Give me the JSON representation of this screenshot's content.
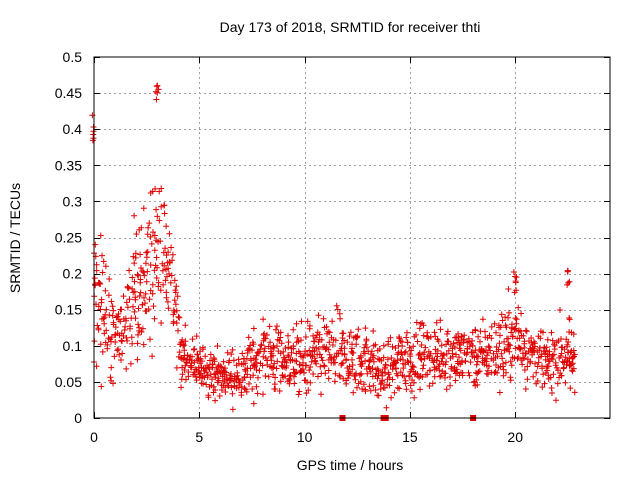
{
  "chart_data": {
    "type": "scatter",
    "title": "Day 173 of 2018, SRMTID for receiver thti",
    "xlabel": "GPS time / hours",
    "ylabel": "SRMTID / TECUs",
    "xlim": [
      0,
      24.5
    ],
    "ylim": [
      0,
      0.5
    ],
    "x_ticks": [
      0,
      5,
      10,
      15,
      20
    ],
    "x_tick_labels": [
      "0",
      "5",
      "10",
      "15",
      "20"
    ],
    "y_ticks": [
      0,
      0.05,
      0.1,
      0.15,
      0.2,
      0.25,
      0.3,
      0.35,
      0.4,
      0.45,
      0.5
    ],
    "y_tick_labels": [
      "0",
      "0.05",
      "0.1",
      "0.15",
      "0.2",
      "0.25",
      "0.3",
      "0.35",
      "0.4",
      "0.45",
      "0.5"
    ],
    "grid": true,
    "marker": "+",
    "color": "#e00000",
    "time_step_hours": 0.05,
    "series": [
      {
        "name": "SRMTID",
        "profile": [
          {
            "t": 0.0,
            "center": 0.17,
            "spread": 0.11,
            "max": 0.42
          },
          {
            "t": 0.5,
            "center": 0.15,
            "spread": 0.09
          },
          {
            "t": 1.0,
            "center": 0.11,
            "spread": 0.06
          },
          {
            "t": 1.5,
            "center": 0.12,
            "spread": 0.07
          },
          {
            "t": 2.0,
            "center": 0.19,
            "spread": 0.09
          },
          {
            "t": 2.5,
            "center": 0.2,
            "spread": 0.1
          },
          {
            "t": 3.0,
            "center": 0.22,
            "spread": 0.12,
            "max": 0.47
          },
          {
            "t": 3.5,
            "center": 0.22,
            "spread": 0.09
          },
          {
            "t": 3.9,
            "center": 0.16,
            "spread": 0.07
          },
          {
            "t": 4.2,
            "center": 0.08,
            "spread": 0.04
          },
          {
            "t": 5.0,
            "center": 0.07,
            "spread": 0.035
          },
          {
            "t": 6.0,
            "center": 0.06,
            "spread": 0.03
          },
          {
            "t": 7.0,
            "center": 0.06,
            "spread": 0.035
          },
          {
            "t": 8.0,
            "center": 0.09,
            "spread": 0.05
          },
          {
            "t": 9.0,
            "center": 0.08,
            "spread": 0.045
          },
          {
            "t": 10.0,
            "center": 0.08,
            "spread": 0.05
          },
          {
            "t": 11.0,
            "center": 0.085,
            "spread": 0.05
          },
          {
            "t": 12.0,
            "center": 0.08,
            "spread": 0.05
          },
          {
            "t": 13.0,
            "center": 0.08,
            "spread": 0.045
          },
          {
            "t": 13.8,
            "center": 0.06,
            "spread": 0.04
          },
          {
            "t": 14.5,
            "center": 0.08,
            "spread": 0.05
          },
          {
            "t": 15.5,
            "center": 0.085,
            "spread": 0.04
          },
          {
            "t": 16.5,
            "center": 0.09,
            "spread": 0.045
          },
          {
            "t": 17.5,
            "center": 0.085,
            "spread": 0.04
          },
          {
            "t": 18.5,
            "center": 0.085,
            "spread": 0.04
          },
          {
            "t": 19.5,
            "center": 0.1,
            "spread": 0.05
          },
          {
            "t": 20.0,
            "center": 0.12,
            "spread": 0.06,
            "max": 0.21
          },
          {
            "t": 20.5,
            "center": 0.1,
            "spread": 0.05
          },
          {
            "t": 21.5,
            "center": 0.075,
            "spread": 0.04
          },
          {
            "t": 22.5,
            "center": 0.09,
            "spread": 0.05,
            "max": 0.22
          },
          {
            "t": 22.85,
            "center": 0.08,
            "spread": 0.04
          }
        ],
        "zero_markers_hours": [
          11.8,
          13.75,
          13.85,
          18.0
        ]
      }
    ]
  }
}
